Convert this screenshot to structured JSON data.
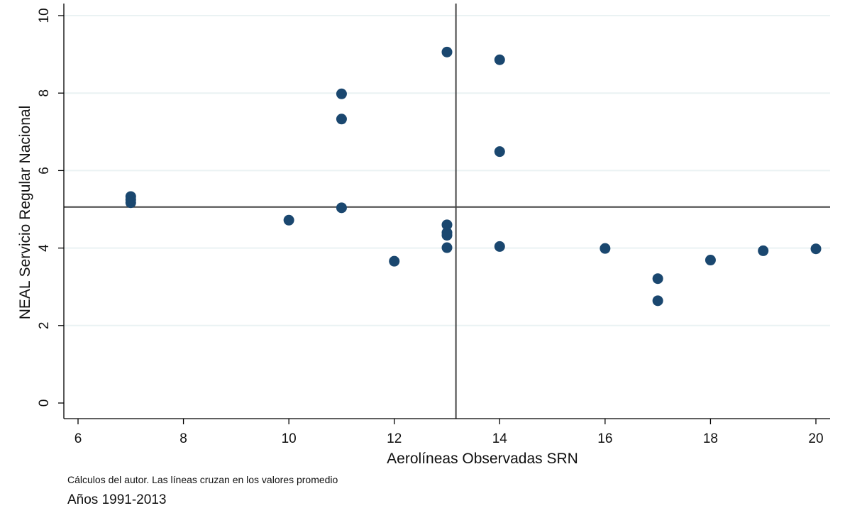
{
  "chart_data": {
    "type": "scatter",
    "title": "",
    "xlabel": "Aerolíneas Observadas SRN",
    "ylabel": "NEAL Servicio Regular Nacional",
    "xlim": [
      6,
      20
    ],
    "ylim": [
      0,
      10
    ],
    "xticks": [
      6,
      8,
      10,
      12,
      14,
      16,
      18,
      20
    ],
    "yticks": [
      0,
      2,
      4,
      6,
      8,
      10
    ],
    "grid": "horizontal",
    "mean_lines": {
      "x": 13.17,
      "y": 5.06
    },
    "point_color": "#1a476f",
    "points": [
      {
        "x": 7,
        "y": 5.33
      },
      {
        "x": 7,
        "y": 5.25
      },
      {
        "x": 7,
        "y": 5.17
      },
      {
        "x": 10,
        "y": 4.72
      },
      {
        "x": 11,
        "y": 7.98
      },
      {
        "x": 11,
        "y": 7.33
      },
      {
        "x": 11,
        "y": 5.04
      },
      {
        "x": 12,
        "y": 3.66
      },
      {
        "x": 13,
        "y": 9.06
      },
      {
        "x": 13,
        "y": 4.6
      },
      {
        "x": 13,
        "y": 4.4
      },
      {
        "x": 13,
        "y": 4.33
      },
      {
        "x": 13,
        "y": 4.01
      },
      {
        "x": 14,
        "y": 8.86
      },
      {
        "x": 14,
        "y": 6.49
      },
      {
        "x": 14,
        "y": 4.04
      },
      {
        "x": 16,
        "y": 3.99
      },
      {
        "x": 17,
        "y": 3.21
      },
      {
        "x": 17,
        "y": 2.64
      },
      {
        "x": 18,
        "y": 3.69
      },
      {
        "x": 19,
        "y": 3.93
      },
      {
        "x": 20,
        "y": 3.98
      }
    ]
  },
  "notes": {
    "line1": "Cálculos del autor. Las líneas cruzan en los valores promedio",
    "line2": "Años 1991-2013"
  }
}
